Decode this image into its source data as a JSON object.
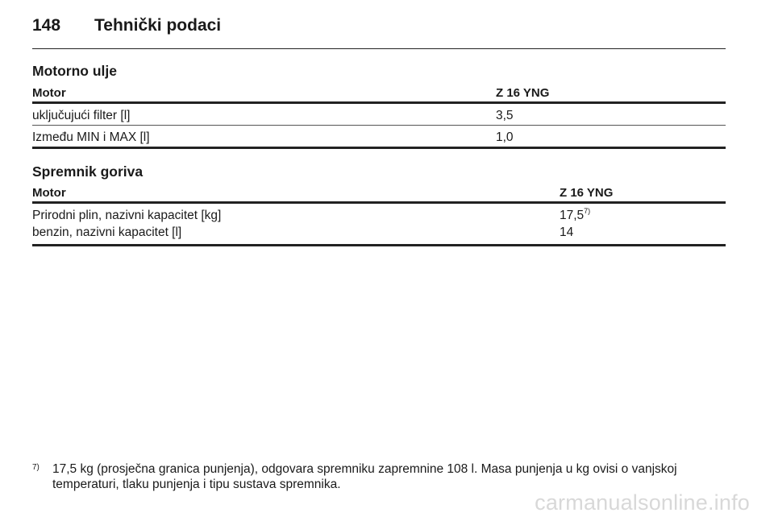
{
  "header": {
    "page_number": "148",
    "title": "Tehnički podaci"
  },
  "oil_section": {
    "title": "Motorno ulje",
    "columns": [
      "Motor",
      "Z 16 YNG"
    ],
    "rows": [
      {
        "label": "uključujući filter [l]",
        "value": "3,5"
      },
      {
        "label": "Između MIN i MAX [l]",
        "value": "1,0"
      }
    ]
  },
  "fuel_section": {
    "title": "Spremnik goriva",
    "columns": [
      "Motor",
      "Z 16 YNG"
    ],
    "rows": [
      {
        "label": "Prirodni plin, nazivni kapacitet [kg]",
        "value": "17,5",
        "footnote_ref": "7)"
      },
      {
        "label": "benzin, nazivni kapacitet [l]",
        "value": "14"
      }
    ]
  },
  "footnote": {
    "marker": "7)",
    "text": "17,5 kg (prosječna granica punjenja), odgovara spremniku zapremnine 108 l. Masa punjenja u kg ovisi o vanjskoj temperaturi, tlaku punjenja i tipu sustava spremnika."
  },
  "watermark": {
    "text": "carmanualsonline.info"
  }
}
